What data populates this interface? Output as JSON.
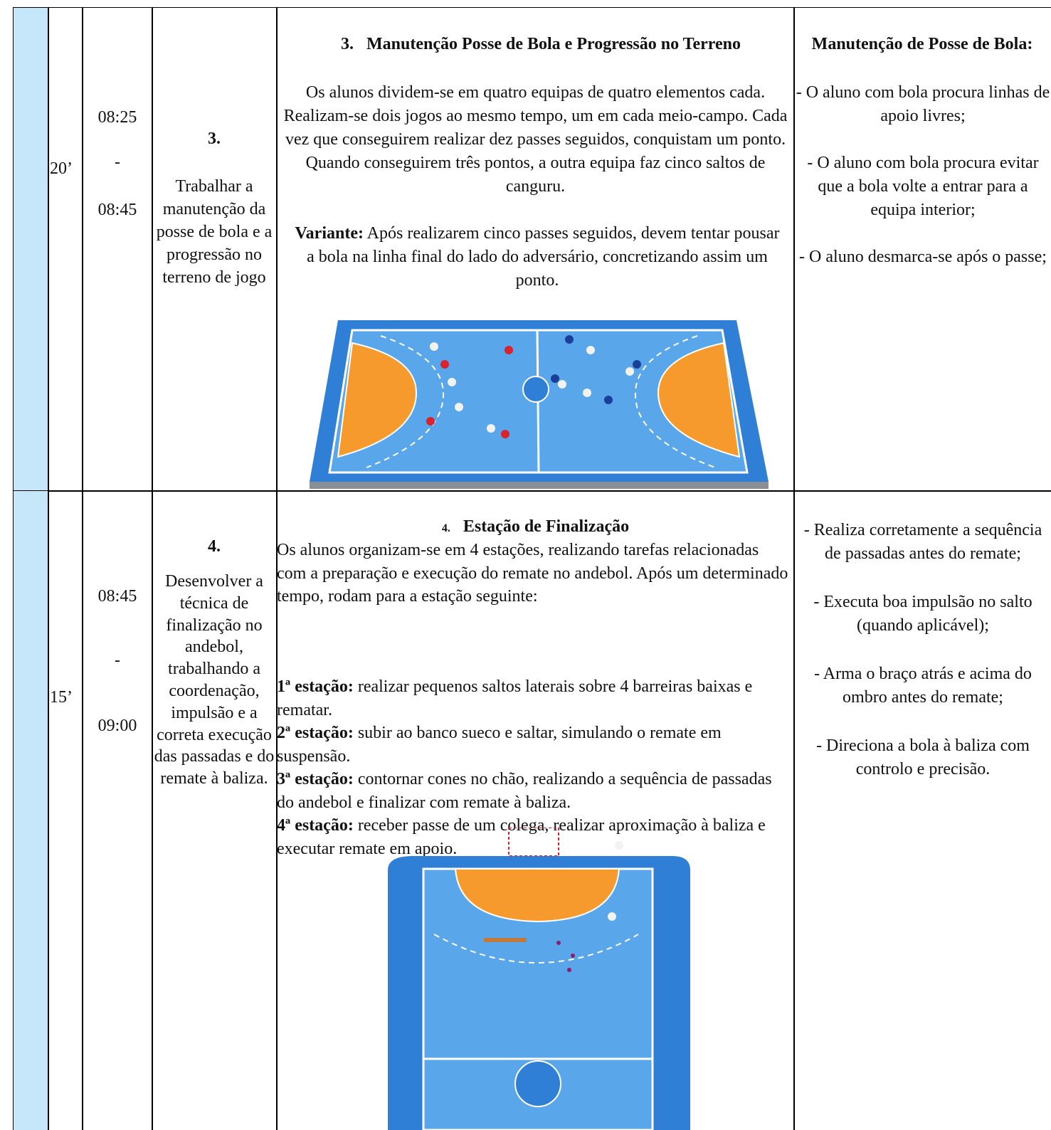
{
  "rows": [
    {
      "duration": "20’",
      "time_start": "08:25",
      "time_sep": "-",
      "time_end": "08:45",
      "objective_number": "3.",
      "objective": "Trabalhar a manutenção da posse de bola e a progressão no terreno de jogo",
      "task": {
        "number": "3.",
        "title": "Manutenção Posse de Bola e Progressão no Terreno",
        "description": "Os alunos dividem-se em quatro equipas de quatro elementos cada. Realizam-se dois jogos ao mesmo tempo, um em cada meio-campo. Cada vez que conseguirem realizar dez passes seguidos, conquistam um ponto. Quando conseguirem três pontos, a outra equipa faz cinco saltos de canguru.",
        "variant_label": "Variante:",
        "variant": "Após realizarem cinco passes seguidos, devem tentar pousar a bola na linha final do lado do adversário, concretizando assim um ponto."
      },
      "criteria_title": "Manutenção de Posse de Bola:",
      "criteria": [
        "- O aluno com bola procura linhas de apoio livres;",
        "- O aluno com bola procura evitar que a bola volte a entrar para a equipa interior;",
        "- O aluno desmarca-se após o passe;"
      ]
    },
    {
      "duration": "15’",
      "time_start": "08:45",
      "time_sep": "-",
      "time_end": "09:00",
      "objective_number": "4.",
      "objective": "Desenvolver a técnica de finalização no andebol, trabalhando a coordenação, impulsão e a correta execução das passadas e do remate à baliza.",
      "task": {
        "number": "4.",
        "title": "Estação de Finalização",
        "description": "Os alunos organizam-se em 4 estações, realizando tarefas relacionadas com a preparação e execução do remate no andebol. Após um determinado tempo, rodam para a estação seguinte:",
        "stations": [
          {
            "label": "1ª estação:",
            "text": "realizar pequenos saltos laterais sobre 4 barreiras baixas e rematar."
          },
          {
            "label": "2ª estação:",
            "text": "subir ao banco sueco e saltar, simulando o remate em suspensão."
          },
          {
            "label": "3ª estação:",
            "text": "contornar cones no chão, realizando a sequência de passadas do andebol e finalizar com remate à baliza."
          },
          {
            "label": "4ª estação:",
            "text": "receber passe de um colega, realizar aproximação à baliza e executar remate em apoio."
          }
        ]
      },
      "criteria": [
        "- Realiza corretamente a sequência de passadas antes do remate;",
        "- Executa boa impulsão no salto (quando aplicável);",
        "- Arma o braço atrás e acima do ombro antes do remate;",
        "- Direciona a bola à baliza com controlo e precisão."
      ]
    }
  ]
}
